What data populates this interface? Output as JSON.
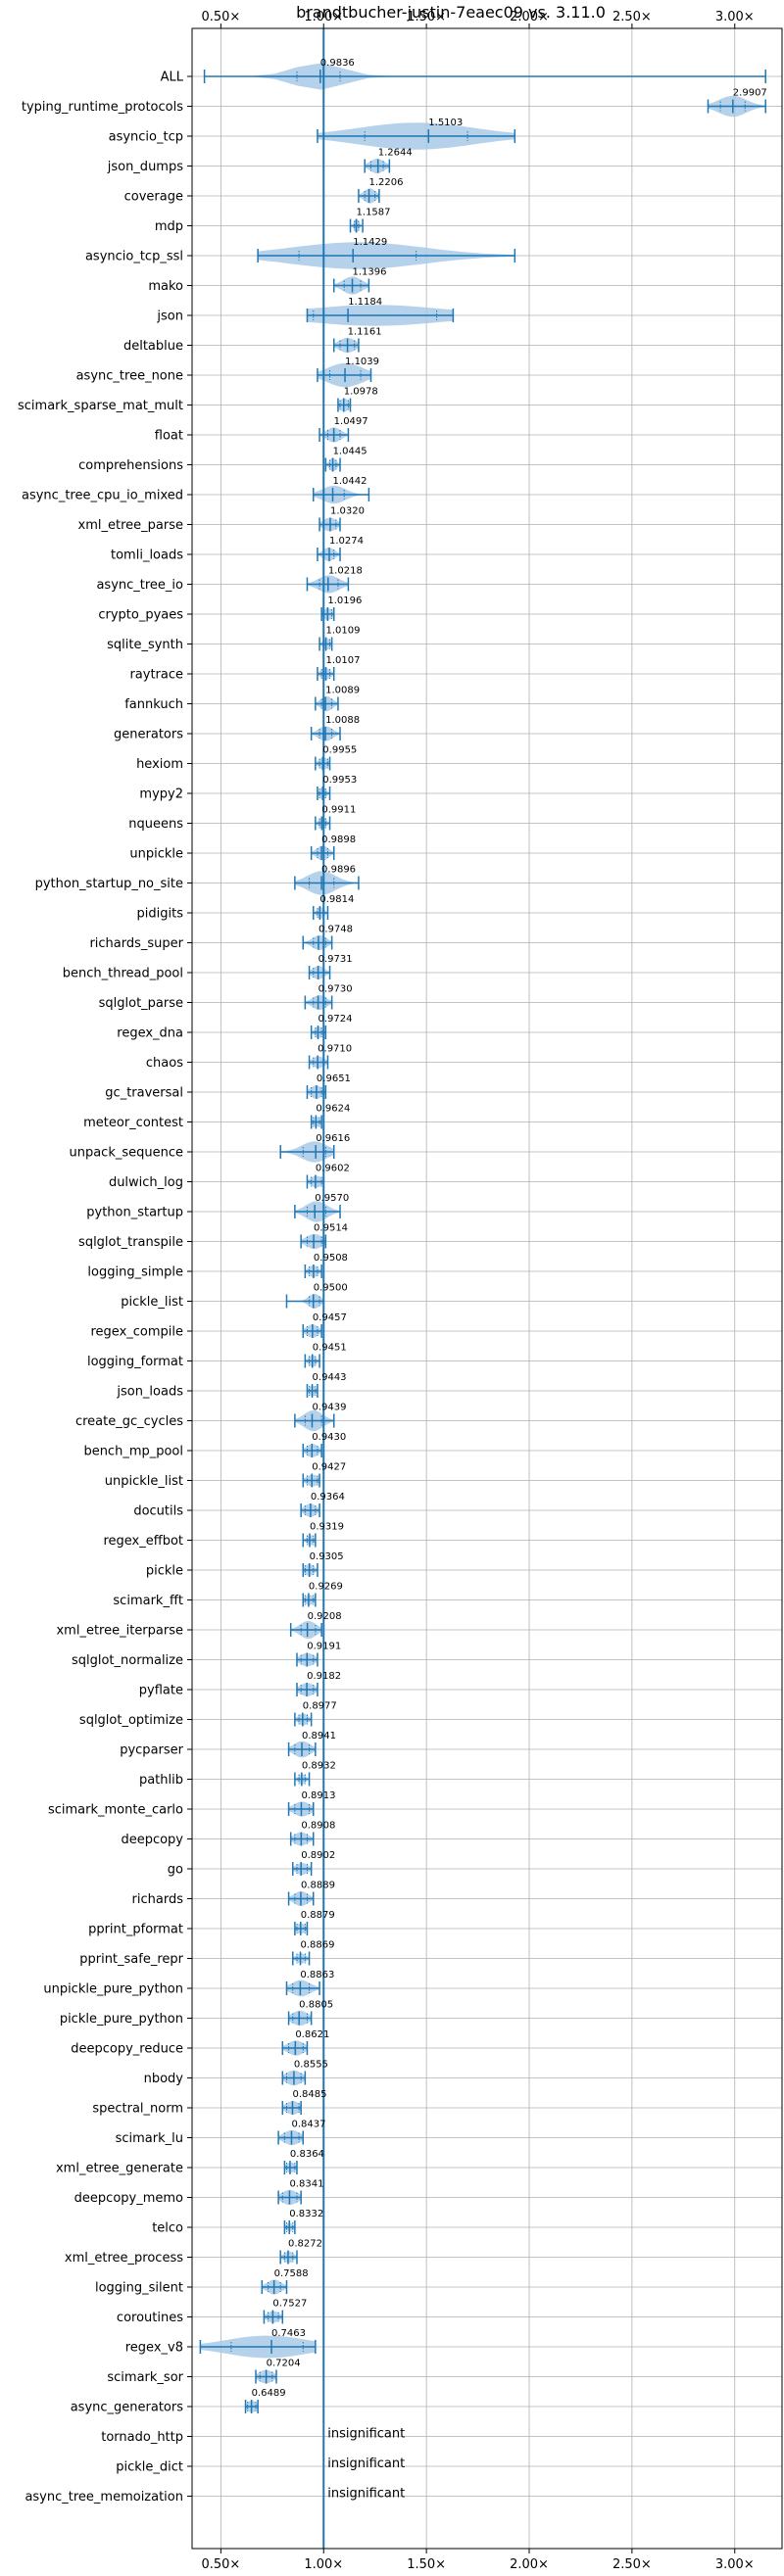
{
  "chart_data": {
    "type": "violin",
    "title": "brandtbucher-justin-7eaec09 vs. 3.11.0",
    "xlabel": "",
    "ylabel": "",
    "x_ticks": [
      "0.50×",
      "1.00×",
      "1.50×",
      "2.00×",
      "2.50×",
      "3.00×"
    ],
    "x_tick_values": [
      0.5,
      1.0,
      1.5,
      2.0,
      2.5,
      3.0
    ],
    "xlim": [
      0.36,
      3.23
    ],
    "grid": true,
    "reference_line": 1.0,
    "insignificant_label": "insignificant",
    "benchmarks": [
      {
        "name": "ALL",
        "value": "0.9836",
        "min": 0.42,
        "max": 3.15,
        "q1": 0.87,
        "q3": 1.08,
        "width": 0.9
      },
      {
        "name": "typing_runtime_protocols",
        "value": "2.9907",
        "min": 2.87,
        "max": 3.15,
        "q1": 2.93,
        "q3": 3.05,
        "width": 0.7
      },
      {
        "name": "asyncio_tcp",
        "value": "1.5103",
        "min": 0.97,
        "max": 1.93,
        "q1": 1.2,
        "q3": 1.7,
        "width": 0.9
      },
      {
        "name": "json_dumps",
        "value": "1.2644",
        "min": 1.2,
        "max": 1.32,
        "q1": 1.23,
        "q3": 1.29,
        "width": 0.5
      },
      {
        "name": "coverage",
        "value": "1.2206",
        "min": 1.17,
        "max": 1.27,
        "q1": 1.2,
        "q3": 1.25,
        "width": 0.5
      },
      {
        "name": "mdp",
        "value": "1.1587",
        "min": 1.13,
        "max": 1.19,
        "q1": 1.15,
        "q3": 1.17,
        "width": 0.45
      },
      {
        "name": "asyncio_tcp_ssl",
        "value": "1.1429",
        "min": 0.68,
        "max": 1.93,
        "q1": 0.88,
        "q3": 1.45,
        "width": 0.9
      },
      {
        "name": "mako",
        "value": "1.1396",
        "min": 1.05,
        "max": 1.22,
        "q1": 1.1,
        "q3": 1.18,
        "width": 0.6
      },
      {
        "name": "json",
        "value": "1.1184",
        "min": 0.92,
        "max": 1.63,
        "q1": 0.95,
        "q3": 1.55,
        "width": 0.7
      },
      {
        "name": "deltablue",
        "value": "1.1161",
        "min": 1.05,
        "max": 1.17,
        "q1": 1.08,
        "q3": 1.15,
        "width": 0.5
      },
      {
        "name": "async_tree_none",
        "value": "1.1039",
        "min": 0.97,
        "max": 1.23,
        "q1": 1.03,
        "q3": 1.18,
        "width": 0.8
      },
      {
        "name": "scimark_sparse_mat_mult",
        "value": "1.0978",
        "min": 1.07,
        "max": 1.13,
        "q1": 1.08,
        "q3": 1.12,
        "width": 0.45
      },
      {
        "name": "float",
        "value": "1.0497",
        "min": 0.98,
        "max": 1.12,
        "q1": 1.02,
        "q3": 1.08,
        "width": 0.5
      },
      {
        "name": "comprehensions",
        "value": "1.0445",
        "min": 1.01,
        "max": 1.08,
        "q1": 1.03,
        "q3": 1.06,
        "width": 0.45
      },
      {
        "name": "async_tree_cpu_io_mixed",
        "value": "1.0442",
        "min": 0.95,
        "max": 1.22,
        "q1": 1.0,
        "q3": 1.1,
        "width": 0.6
      },
      {
        "name": "xml_etree_parse",
        "value": "1.0320",
        "min": 0.98,
        "max": 1.08,
        "q1": 1.0,
        "q3": 1.06,
        "width": 0.45
      },
      {
        "name": "tomli_loads",
        "value": "1.0274",
        "min": 0.97,
        "max": 1.08,
        "q1": 1.0,
        "q3": 1.05,
        "width": 0.45
      },
      {
        "name": "async_tree_io",
        "value": "1.0218",
        "min": 0.92,
        "max": 1.12,
        "q1": 0.98,
        "q3": 1.07,
        "width": 0.6
      },
      {
        "name": "crypto_pyaes",
        "value": "1.0196",
        "min": 0.99,
        "max": 1.05,
        "q1": 1.0,
        "q3": 1.04,
        "width": 0.4
      },
      {
        "name": "sqlite_synth",
        "value": "1.0109",
        "min": 0.98,
        "max": 1.04,
        "q1": 1.0,
        "q3": 1.03,
        "width": 0.4
      },
      {
        "name": "raytrace",
        "value": "1.0107",
        "min": 0.97,
        "max": 1.05,
        "q1": 0.99,
        "q3": 1.03,
        "width": 0.4
      },
      {
        "name": "fannkuch",
        "value": "1.0089",
        "min": 0.96,
        "max": 1.07,
        "q1": 0.99,
        "q3": 1.04,
        "width": 0.5
      },
      {
        "name": "generators",
        "value": "1.0088",
        "min": 0.94,
        "max": 1.08,
        "q1": 0.98,
        "q3": 1.04,
        "width": 0.5
      },
      {
        "name": "hexiom",
        "value": "0.9955",
        "min": 0.96,
        "max": 1.03,
        "q1": 0.98,
        "q3": 1.02,
        "width": 0.4
      },
      {
        "name": "mypy2",
        "value": "0.9953",
        "min": 0.97,
        "max": 1.03,
        "q1": 0.98,
        "q3": 1.01,
        "width": 0.4
      },
      {
        "name": "nqueens",
        "value": "0.9911",
        "min": 0.96,
        "max": 1.03,
        "q1": 0.98,
        "q3": 1.01,
        "width": 0.4
      },
      {
        "name": "unpickle",
        "value": "0.9898",
        "min": 0.94,
        "max": 1.05,
        "q1": 0.97,
        "q3": 1.02,
        "width": 0.5
      },
      {
        "name": "python_startup_no_site",
        "value": "0.9896",
        "min": 0.86,
        "max": 1.17,
        "q1": 0.93,
        "q3": 1.05,
        "width": 0.8
      },
      {
        "name": "pidigits",
        "value": "0.9814",
        "min": 0.95,
        "max": 1.02,
        "q1": 0.97,
        "q3": 1.0,
        "width": 0.4
      },
      {
        "name": "richards_super",
        "value": "0.9748",
        "min": 0.9,
        "max": 1.04,
        "q1": 0.95,
        "q3": 1.01,
        "width": 0.5
      },
      {
        "name": "bench_thread_pool",
        "value": "0.9731",
        "min": 0.93,
        "max": 1.03,
        "q1": 0.95,
        "q3": 1.0,
        "width": 0.45
      },
      {
        "name": "sqlglot_parse",
        "value": "0.9730",
        "min": 0.91,
        "max": 1.04,
        "q1": 0.95,
        "q3": 1.01,
        "width": 0.5
      },
      {
        "name": "regex_dna",
        "value": "0.9724",
        "min": 0.94,
        "max": 1.01,
        "q1": 0.96,
        "q3": 0.99,
        "width": 0.4
      },
      {
        "name": "chaos",
        "value": "0.9710",
        "min": 0.93,
        "max": 1.02,
        "q1": 0.95,
        "q3": 1.0,
        "width": 0.4
      },
      {
        "name": "gc_traversal",
        "value": "0.9651",
        "min": 0.92,
        "max": 1.01,
        "q1": 0.94,
        "q3": 0.99,
        "width": 0.45
      },
      {
        "name": "meteor_contest",
        "value": "0.9624",
        "min": 0.94,
        "max": 0.99,
        "q1": 0.95,
        "q3": 0.98,
        "width": 0.35
      },
      {
        "name": "unpack_sequence",
        "value": "0.9616",
        "min": 0.79,
        "max": 1.05,
        "q1": 0.9,
        "q3": 1.01,
        "width": 0.7
      },
      {
        "name": "dulwich_log",
        "value": "0.9602",
        "min": 0.92,
        "max": 1.0,
        "q1": 0.94,
        "q3": 0.99,
        "width": 0.4
      },
      {
        "name": "python_startup",
        "value": "0.9570",
        "min": 0.86,
        "max": 1.08,
        "q1": 0.92,
        "q3": 1.01,
        "width": 0.7
      },
      {
        "name": "sqlglot_transpile",
        "value": "0.9514",
        "min": 0.89,
        "max": 1.01,
        "q1": 0.92,
        "q3": 0.99,
        "width": 0.5
      },
      {
        "name": "logging_simple",
        "value": "0.9508",
        "min": 0.91,
        "max": 0.99,
        "q1": 0.93,
        "q3": 0.97,
        "width": 0.4
      },
      {
        "name": "pickle_list",
        "value": "0.9500",
        "min": 0.82,
        "max": 1.0,
        "q1": 0.93,
        "q3": 0.98,
        "width": 0.5
      },
      {
        "name": "regex_compile",
        "value": "0.9457",
        "min": 0.9,
        "max": 0.99,
        "q1": 0.92,
        "q3": 0.97,
        "width": 0.45
      },
      {
        "name": "logging_format",
        "value": "0.9451",
        "min": 0.91,
        "max": 0.98,
        "q1": 0.93,
        "q3": 0.96,
        "width": 0.4
      },
      {
        "name": "json_loads",
        "value": "0.9443",
        "min": 0.92,
        "max": 0.97,
        "q1": 0.93,
        "q3": 0.96,
        "width": 0.35
      },
      {
        "name": "create_gc_cycles",
        "value": "0.9439",
        "min": 0.86,
        "max": 1.05,
        "q1": 0.91,
        "q3": 0.99,
        "width": 0.7
      },
      {
        "name": "bench_mp_pool",
        "value": "0.9430",
        "min": 0.9,
        "max": 0.99,
        "q1": 0.92,
        "q3": 0.97,
        "width": 0.45
      },
      {
        "name": "unpickle_list",
        "value": "0.9427",
        "min": 0.9,
        "max": 0.98,
        "q1": 0.92,
        "q3": 0.97,
        "width": 0.4
      },
      {
        "name": "docutils",
        "value": "0.9364",
        "min": 0.89,
        "max": 0.98,
        "q1": 0.91,
        "q3": 0.96,
        "width": 0.45
      },
      {
        "name": "regex_effbot",
        "value": "0.9319",
        "min": 0.9,
        "max": 0.96,
        "q1": 0.92,
        "q3": 0.95,
        "width": 0.35
      },
      {
        "name": "pickle",
        "value": "0.9305",
        "min": 0.9,
        "max": 0.97,
        "q1": 0.91,
        "q3": 0.95,
        "width": 0.4
      },
      {
        "name": "scimark_fft",
        "value": "0.9269",
        "min": 0.9,
        "max": 0.96,
        "q1": 0.91,
        "q3": 0.95,
        "width": 0.35
      },
      {
        "name": "xml_etree_iterparse",
        "value": "0.9208",
        "min": 0.84,
        "max": 0.99,
        "q1": 0.89,
        "q3": 0.96,
        "width": 0.6
      },
      {
        "name": "sqlglot_normalize",
        "value": "0.9191",
        "min": 0.87,
        "max": 0.97,
        "q1": 0.89,
        "q3": 0.95,
        "width": 0.45
      },
      {
        "name": "pyflate",
        "value": "0.9182",
        "min": 0.87,
        "max": 0.97,
        "q1": 0.89,
        "q3": 0.95,
        "width": 0.45
      },
      {
        "name": "sqlglot_optimize",
        "value": "0.8977",
        "min": 0.86,
        "max": 0.94,
        "q1": 0.88,
        "q3": 0.92,
        "width": 0.4
      },
      {
        "name": "pycparser",
        "value": "0.8941",
        "min": 0.83,
        "max": 0.96,
        "q1": 0.86,
        "q3": 0.93,
        "width": 0.55
      },
      {
        "name": "pathlib",
        "value": "0.8932",
        "min": 0.86,
        "max": 0.93,
        "q1": 0.88,
        "q3": 0.91,
        "width": 0.35
      },
      {
        "name": "scimark_monte_carlo",
        "value": "0.8913",
        "min": 0.83,
        "max": 0.95,
        "q1": 0.86,
        "q3": 0.93,
        "width": 0.5
      },
      {
        "name": "deepcopy",
        "value": "0.8908",
        "min": 0.84,
        "max": 0.95,
        "q1": 0.86,
        "q3": 0.92,
        "width": 0.45
      },
      {
        "name": "go",
        "value": "0.8902",
        "min": 0.85,
        "max": 0.94,
        "q1": 0.87,
        "q3": 0.92,
        "width": 0.4
      },
      {
        "name": "richards",
        "value": "0.8889",
        "min": 0.83,
        "max": 0.95,
        "q1": 0.86,
        "q3": 0.92,
        "width": 0.5
      },
      {
        "name": "pprint_pformat",
        "value": "0.8879",
        "min": 0.86,
        "max": 0.92,
        "q1": 0.87,
        "q3": 0.91,
        "width": 0.35
      },
      {
        "name": "pprint_safe_repr",
        "value": "0.8869",
        "min": 0.85,
        "max": 0.93,
        "q1": 0.87,
        "q3": 0.91,
        "width": 0.35
      },
      {
        "name": "unpickle_pure_python",
        "value": "0.8863",
        "min": 0.82,
        "max": 0.98,
        "q1": 0.85,
        "q3": 0.93,
        "width": 0.55
      },
      {
        "name": "pickle_pure_python",
        "value": "0.8805",
        "min": 0.83,
        "max": 0.94,
        "q1": 0.85,
        "q3": 0.92,
        "width": 0.5
      },
      {
        "name": "deepcopy_reduce",
        "value": "0.8621",
        "min": 0.8,
        "max": 0.92,
        "q1": 0.83,
        "q3": 0.9,
        "width": 0.5
      },
      {
        "name": "nbody",
        "value": "0.8555",
        "min": 0.8,
        "max": 0.91,
        "q1": 0.82,
        "q3": 0.89,
        "width": 0.5
      },
      {
        "name": "spectral_norm",
        "value": "0.8485",
        "min": 0.8,
        "max": 0.89,
        "q1": 0.82,
        "q3": 0.88,
        "width": 0.45
      },
      {
        "name": "scimark_lu",
        "value": "0.8437",
        "min": 0.78,
        "max": 0.9,
        "q1": 0.81,
        "q3": 0.88,
        "width": 0.5
      },
      {
        "name": "xml_etree_generate",
        "value": "0.8364",
        "min": 0.81,
        "max": 0.87,
        "q1": 0.82,
        "q3": 0.86,
        "width": 0.35
      },
      {
        "name": "deepcopy_memo",
        "value": "0.8341",
        "min": 0.78,
        "max": 0.89,
        "q1": 0.8,
        "q3": 0.87,
        "width": 0.5
      },
      {
        "name": "telco",
        "value": "0.8332",
        "min": 0.81,
        "max": 0.86,
        "q1": 0.82,
        "q3": 0.85,
        "width": 0.3
      },
      {
        "name": "xml_etree_process",
        "value": "0.8272",
        "min": 0.79,
        "max": 0.87,
        "q1": 0.81,
        "q3": 0.85,
        "width": 0.4
      },
      {
        "name": "logging_silent",
        "value": "0.7588",
        "min": 0.7,
        "max": 0.82,
        "q1": 0.73,
        "q3": 0.79,
        "width": 0.5
      },
      {
        "name": "coroutines",
        "value": "0.7527",
        "min": 0.71,
        "max": 0.8,
        "q1": 0.73,
        "q3": 0.78,
        "width": 0.4
      },
      {
        "name": "regex_v8",
        "value": "0.7463",
        "min": 0.4,
        "max": 0.96,
        "q1": 0.55,
        "q3": 0.9,
        "width": 0.75
      },
      {
        "name": "scimark_sor",
        "value": "0.7204",
        "min": 0.67,
        "max": 0.77,
        "q1": 0.69,
        "q3": 0.75,
        "width": 0.45
      },
      {
        "name": "async_generators",
        "value": "0.6489",
        "min": 0.62,
        "max": 0.68,
        "q1": 0.63,
        "q3": 0.67,
        "width": 0.4
      },
      {
        "name": "tornado_http",
        "value": "insignificant"
      },
      {
        "name": "pickle_dict",
        "value": "insignificant"
      },
      {
        "name": "async_tree_memoization",
        "value": "insignificant"
      }
    ],
    "colors": {
      "violin_fill": "#a9c9e6",
      "stat_lines": "#1f77b4",
      "grid": "#b0b0b0"
    }
  }
}
